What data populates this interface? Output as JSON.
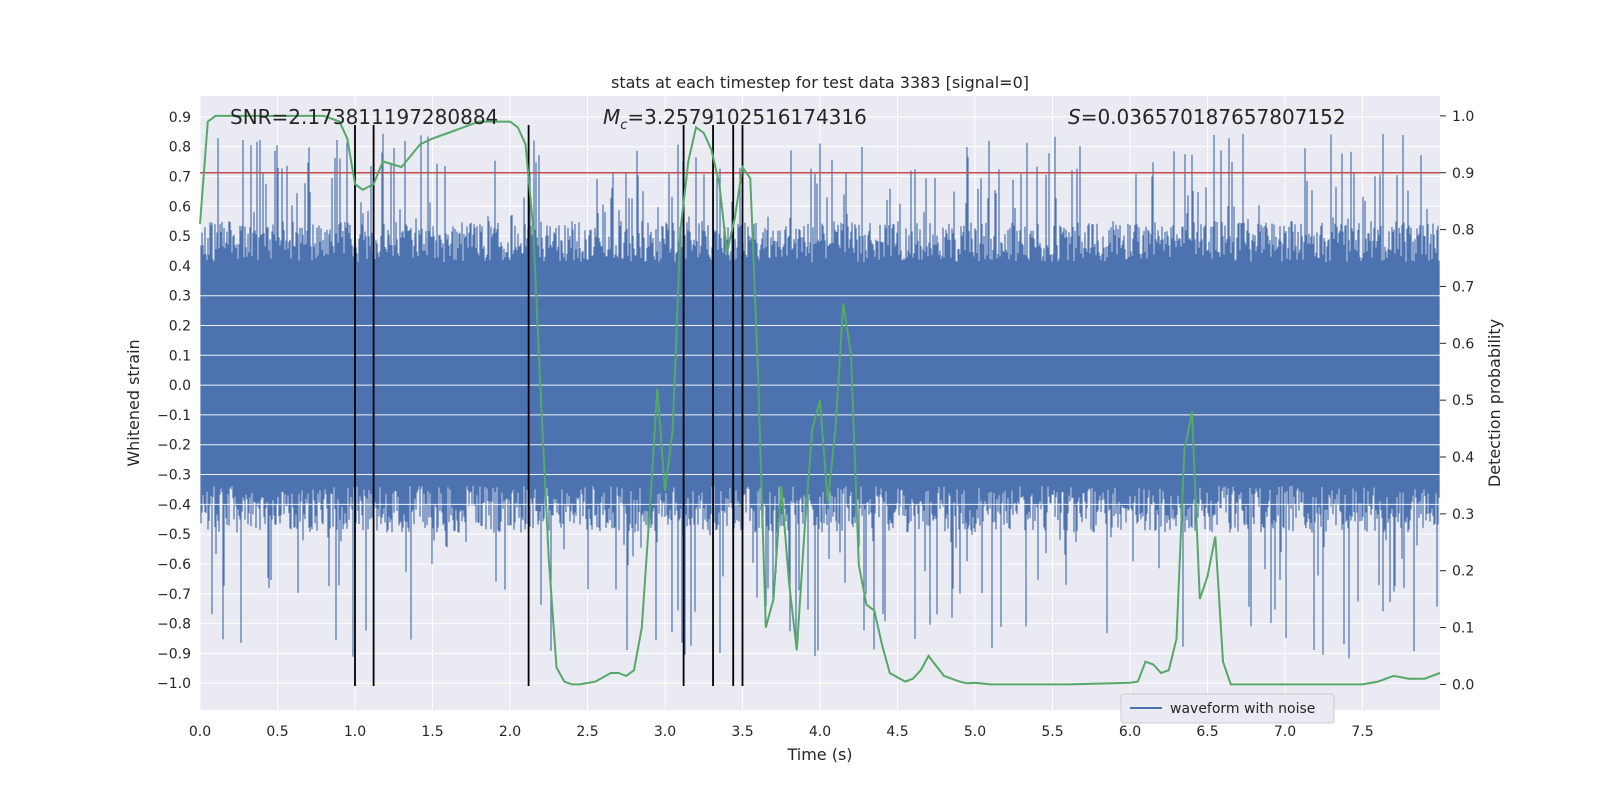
{
  "chart_data": {
    "type": "line",
    "title": "stats at each timestep for test data 3383 [signal=0]",
    "xlabel": "Time (s)",
    "ylabel": "Whitened strain",
    "y2label": "Detection probability",
    "xlim": [
      0.0,
      8.0
    ],
    "ylim": [
      -1.09,
      0.97
    ],
    "y2lim": [
      -0.045,
      1.035
    ],
    "xticks": [
      "0.0",
      "0.5",
      "1.0",
      "1.5",
      "2.0",
      "2.5",
      "3.0",
      "3.5",
      "4.0",
      "4.5",
      "5.0",
      "5.5",
      "6.0",
      "6.5",
      "7.0",
      "7.5"
    ],
    "yticks": [
      "0.9",
      "0.8",
      "0.7",
      "0.6",
      "0.5",
      "0.4",
      "0.3",
      "0.2",
      "0.1",
      "0.0",
      "−0.1",
      "−0.2",
      "−0.3",
      "−0.4",
      "−0.5",
      "−0.6",
      "−0.7",
      "−0.8",
      "−0.9",
      "−1.0"
    ],
    "y2ticks": [
      "1.0",
      "0.9",
      "0.8",
      "0.7",
      "0.6",
      "0.5",
      "0.4",
      "0.3",
      "0.2",
      "0.1",
      "0.0"
    ],
    "annotations": {
      "snr": "SNR=2.173811197280884",
      "mc_symbol": "M",
      "mc_sub": "c",
      "mc_value": "=3.2579102516174316",
      "s_symbol": "S",
      "s_value": "=0.036570187657807152"
    },
    "legend": {
      "label": "waveform with noise",
      "placement": "lower-right"
    },
    "threshold_line": {
      "axis": "y2",
      "value": 0.9,
      "color": "#c44e52"
    },
    "vertical_markers_s": [
      1.0,
      1.12,
      2.12,
      3.12,
      3.31,
      3.44,
      3.5
    ],
    "waveform": {
      "name": "waveform with noise",
      "color": "#4c72b0",
      "typical_envelope": [
        -0.45,
        0.55
      ],
      "peak_range": [
        -1.0,
        0.9
      ]
    },
    "detection_probability": {
      "color": "#55a868",
      "x": [
        0.0,
        0.05,
        0.1,
        0.2,
        0.4,
        0.6,
        0.8,
        0.9,
        0.95,
        1.0,
        1.05,
        1.12,
        1.18,
        1.3,
        1.42,
        1.5,
        1.6,
        1.7,
        1.8,
        1.9,
        2.0,
        2.05,
        2.1,
        2.15,
        2.2,
        2.25,
        2.3,
        2.35,
        2.4,
        2.45,
        2.55,
        2.65,
        2.7,
        2.75,
        2.8,
        2.85,
        2.9,
        2.95,
        3.0,
        3.05,
        3.1,
        3.15,
        3.2,
        3.25,
        3.3,
        3.35,
        3.4,
        3.45,
        3.5,
        3.55,
        3.6,
        3.65,
        3.7,
        3.75,
        3.8,
        3.85,
        3.9,
        3.95,
        4.0,
        4.05,
        4.1,
        4.15,
        4.2,
        4.25,
        4.3,
        4.35,
        4.4,
        4.45,
        4.55,
        4.6,
        4.65,
        4.7,
        4.8,
        4.9,
        4.95,
        5.0,
        5.1,
        5.3,
        5.6,
        5.9,
        6.0,
        6.05,
        6.1,
        6.15,
        6.2,
        6.25,
        6.3,
        6.35,
        6.4,
        6.45,
        6.5,
        6.55,
        6.6,
        6.65,
        6.7,
        6.75,
        6.8,
        6.9,
        7.2,
        7.5,
        7.6,
        7.7,
        7.8,
        7.9,
        8.0
      ],
      "y": [
        0.81,
        0.99,
        1.0,
        1.0,
        1.0,
        1.0,
        1.0,
        0.99,
        0.96,
        0.88,
        0.87,
        0.88,
        0.92,
        0.91,
        0.95,
        0.96,
        0.97,
        0.98,
        0.99,
        0.99,
        0.99,
        0.98,
        0.95,
        0.8,
        0.5,
        0.22,
        0.03,
        0.005,
        0.0,
        0.0,
        0.005,
        0.02,
        0.02,
        0.015,
        0.025,
        0.1,
        0.3,
        0.52,
        0.34,
        0.45,
        0.8,
        0.92,
        0.98,
        0.97,
        0.94,
        0.88,
        0.76,
        0.82,
        0.91,
        0.89,
        0.55,
        0.1,
        0.15,
        0.35,
        0.18,
        0.06,
        0.27,
        0.45,
        0.5,
        0.32,
        0.45,
        0.67,
        0.58,
        0.21,
        0.14,
        0.13,
        0.07,
        0.02,
        0.005,
        0.01,
        0.025,
        0.05,
        0.015,
        0.005,
        0.002,
        0.003,
        0.0,
        0.0,
        0.0,
        0.002,
        0.003,
        0.005,
        0.04,
        0.035,
        0.02,
        0.025,
        0.08,
        0.41,
        0.48,
        0.15,
        0.19,
        0.26,
        0.04,
        0.0,
        0.0,
        0.0,
        0.0,
        0.0,
        0.0,
        0.0,
        0.005,
        0.015,
        0.01,
        0.01,
        0.02
      ]
    }
  }
}
